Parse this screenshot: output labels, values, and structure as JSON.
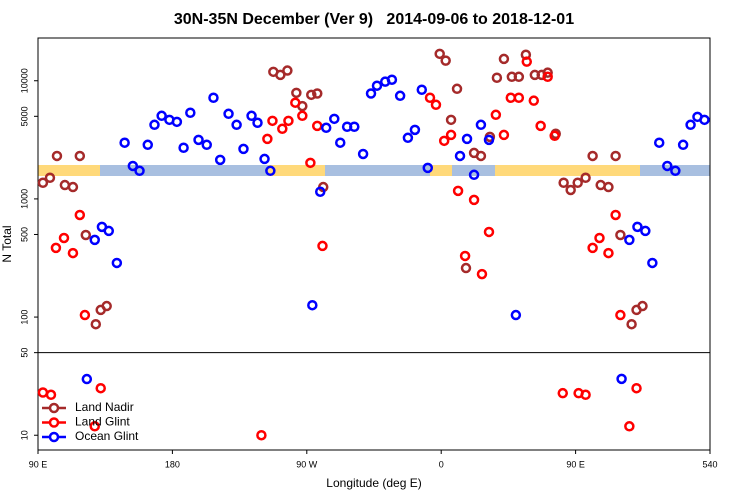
{
  "chart_data": {
    "type": "scatter",
    "title": "30N-35N December (Ver 9)   2014-09-06 to 2018-12-01",
    "xlabel": "Longitude (deg E)",
    "ylabel": "N Total",
    "xlim": [
      90,
      540
    ],
    "xticks": [
      {
        "value": 90,
        "label": "90 E"
      },
      180,
      {
        "value": 270,
        "label": "90 W"
      },
      {
        "value": 360,
        "label": "0"
      },
      {
        "value": 450,
        "label": "90 E"
      },
      540
    ],
    "ylim": [
      7.5,
      23000
    ],
    "log_y": true,
    "yticks": [
      10,
      50,
      100,
      500,
      1000,
      5000,
      10000
    ],
    "divider": 50,
    "legend": "lower left",
    "series": [
      {
        "name": "Land Nadir",
        "color": "#a52a2a",
        "x": [
          93.3,
          98,
          102.7,
          108,
          113.4,
          118,
          122,
          128.7,
          132,
          136,
          247.6,
          252.3,
          257,
          263,
          267,
          273,
          277,
          281,
          359,
          363,
          366.6,
          370.6,
          376.6,
          382,
          386.6,
          392.6,
          397.3,
          402,
          407.3,
          412,
          416.7,
          422.7,
          427.3,
          431.3,
          436.7,
          442,
          446.7,
          451.4,
          456.7,
          461.4,
          466.8,
          472,
          476.8,
          480,
          487.5,
          490.8,
          494.8
        ],
        "values": [
          1370,
          1510,
          2310,
          1310,
          1260,
          2310,
          495,
          87,
          115,
          124,
          11900,
          11200,
          12200,
          7900,
          6100,
          7600,
          7800,
          1260,
          16900,
          14800,
          4670,
          8550,
          260,
          2450,
          2310,
          3350,
          10600,
          15300,
          10800,
          10800,
          16600,
          11200,
          11200,
          11700,
          3560,
          1370,
          1190,
          1370,
          1510,
          2310,
          1310,
          1260,
          2310,
          495,
          87,
          115,
          124
        ]
      },
      {
        "name": "Land Glint",
        "color": "#ff0000",
        "x": [
          93.3,
          98.7,
          102,
          107.4,
          113.4,
          118,
          121.4,
          128,
          132,
          239.6,
          243.6,
          247,
          253.6,
          257.7,
          262.3,
          267,
          272.4,
          277,
          280.5,
          352.5,
          356.5,
          362,
          366.6,
          371.3,
          376,
          382,
          387.3,
          392,
          396.6,
          402,
          406.6,
          412,
          417.3,
          422,
          426.6,
          431.3,
          436,
          441.4,
          452,
          456.7,
          461.4,
          466,
          472,
          476.8,
          480,
          486,
          490.8
        ],
        "values": [
          23,
          22,
          385,
          467,
          348,
          731,
          104,
          11.9,
          25,
          10,
          3220,
          4580,
          3920,
          4580,
          6520,
          5050,
          2020,
          4150,
          400,
          7180,
          6260,
          3100,
          3480,
          1170,
          329,
          981,
          231,
          525,
          5150,
          3480,
          7180,
          7180,
          14500,
          6780,
          4150,
          10800,
          3420,
          22.7,
          22.7,
          22,
          385,
          467,
          348,
          731,
          104,
          11.9,
          25
        ]
      },
      {
        "name": "Ocean Glint",
        "color": "#0000ff",
        "x": [
          122.7,
          128,
          132.8,
          137.4,
          142.8,
          148,
          153.5,
          158,
          163.5,
          168,
          172.8,
          178,
          183,
          187.5,
          192,
          197.5,
          203,
          207.5,
          212,
          217.6,
          223,
          227.6,
          233,
          237,
          241.7,
          245.6,
          273.7,
          279,
          283,
          288.4,
          292.4,
          297,
          301.8,
          307.7,
          313,
          317,
          322.5,
          327,
          332.5,
          337.7,
          342.4,
          347,
          351,
          372.6,
          377.3,
          382,
          386.6,
          392,
          410,
          480.8,
          486,
          491.4,
          496.7,
          501.4,
          506,
          511.4,
          516.8,
          522,
          527,
          531.6,
          536.3
        ],
        "values": [
          29.9,
          450,
          580,
          536,
          287,
          2990,
          1900,
          1730,
          2870,
          4240,
          5050,
          4670,
          4490,
          2710,
          5360,
          3160,
          2870,
          7180,
          2140,
          5250,
          4240,
          2650,
          5050,
          4410,
          2180,
          1730,
          126,
          1150,
          4000,
          4760,
          2990,
          4080,
          4080,
          2400,
          7800,
          9080,
          9820,
          10200,
          7460,
          3290,
          3840,
          8390,
          1830,
          2310,
          3220,
          1600,
          4240,
          3160,
          104,
          30,
          450,
          580,
          536,
          287,
          2990,
          1900,
          1730,
          2870,
          4240,
          4950,
          4670
        ]
      }
    ]
  }
}
